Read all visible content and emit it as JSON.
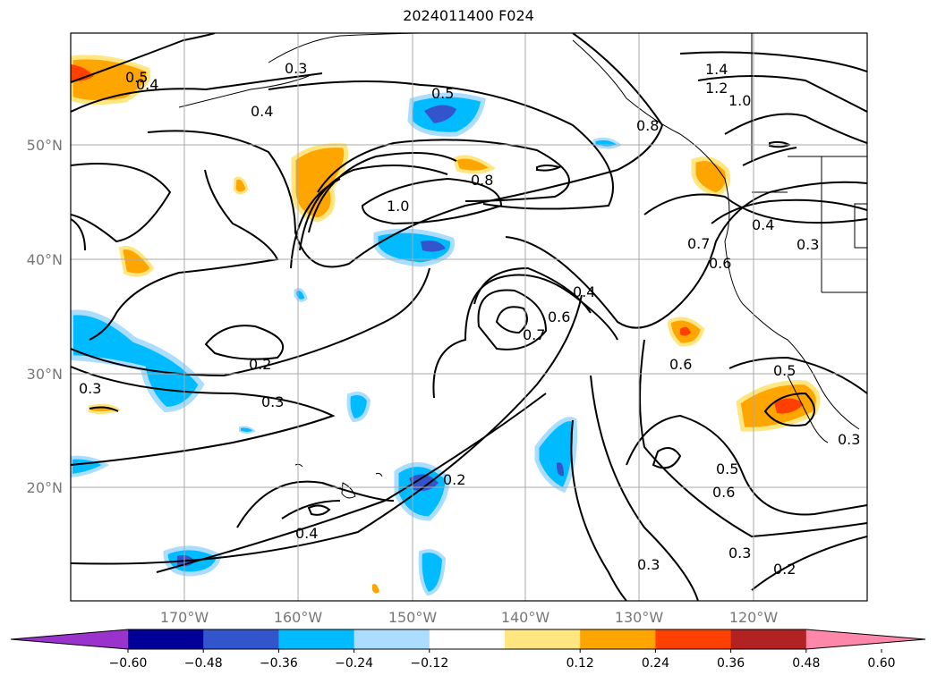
{
  "title": "2024011400 F024",
  "map": {
    "lat_labels": [
      "50°N",
      "40°N",
      "30°N",
      "20°N"
    ],
    "lon_labels": [
      "170°W",
      "160°W",
      "150°W",
      "140°W",
      "130°W",
      "120°W"
    ],
    "contour_labels": [
      "0.5",
      "0.4",
      "0.3",
      "0.4",
      "0.5",
      "1.4",
      "1.2",
      "1.0",
      "0.8",
      "1.0",
      "0.8",
      "0.4",
      "0.3",
      "0.7",
      "0.6",
      "0.4",
      "0.7",
      "0.6",
      "0.6",
      "0.5",
      "0.2",
      "0.3",
      "0.3",
      "0.2",
      "0.4",
      "0.5",
      "0.6",
      "0.3",
      "0.3",
      "0.2",
      "0.3"
    ]
  },
  "colorbar": {
    "ticks": [
      "−0.60",
      "−0.48",
      "−0.36",
      "−0.24",
      "−0.12",
      "0.12",
      "0.24",
      "0.36",
      "0.48",
      "0.60"
    ],
    "colors": [
      "#9933cc",
      "#000099",
      "#3355cc",
      "#00bbff",
      "#aaddff",
      "#ffffff",
      "#ffe680",
      "#ffa500",
      "#ff4000",
      "#b22222",
      "#ff88aa"
    ]
  }
}
